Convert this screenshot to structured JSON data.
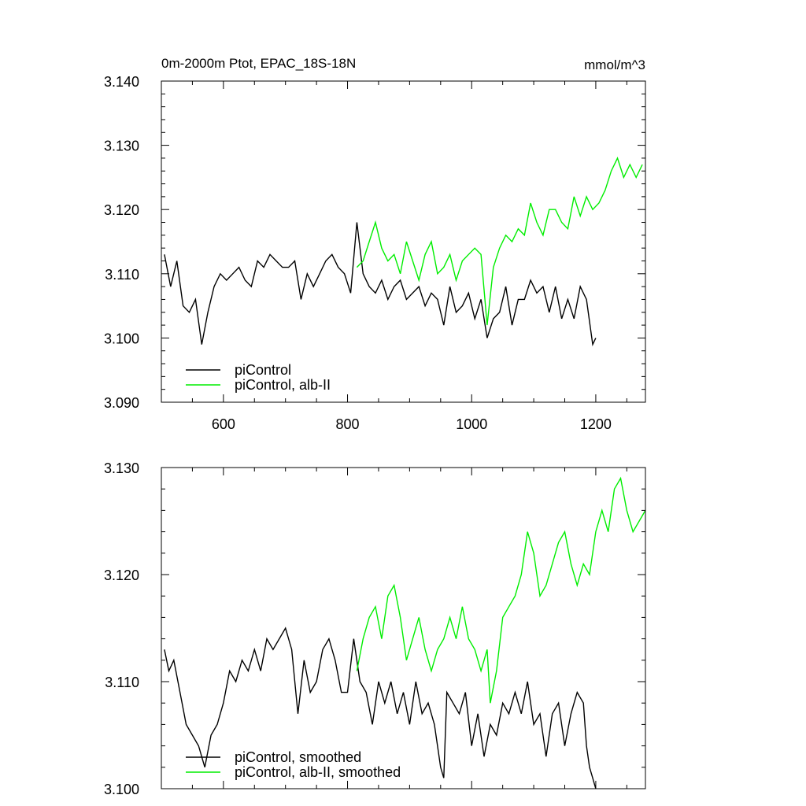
{
  "figure": {
    "title_left": "0m-2000m Ptot, EPAC_18S-18N",
    "title_right": "mmol/m^3"
  },
  "colors": {
    "piControl": "#000000",
    "albII": "#00ee00"
  },
  "chart_data": [
    {
      "type": "line",
      "panel": "top",
      "xlim": [
        500,
        1280
      ],
      "ylim": [
        3.09,
        3.14
      ],
      "x_ticks": [
        600,
        800,
        1000,
        1200
      ],
      "x_tick_labels": [
        "600",
        "800",
        "1000",
        "1200"
      ],
      "y_ticks": [
        3.09,
        3.1,
        3.11,
        3.12,
        3.13,
        3.14
      ],
      "y_tick_labels": [
        "3.090",
        "3.100",
        "3.110",
        "3.120",
        "3.130",
        "3.140"
      ],
      "legend_position": "bottom-left",
      "series": [
        {
          "name": "piControl",
          "color": "#000000",
          "x": [
            505,
            515,
            525,
            535,
            545,
            555,
            565,
            575,
            585,
            595,
            605,
            615,
            625,
            635,
            645,
            655,
            665,
            675,
            685,
            695,
            705,
            715,
            725,
            735,
            745,
            755,
            765,
            775,
            785,
            795,
            805,
            815,
            825,
            835,
            845,
            855,
            865,
            875,
            885,
            895,
            905,
            915,
            925,
            935,
            945,
            955,
            965,
            975,
            985,
            995,
            1005,
            1015,
            1025,
            1035,
            1045,
            1055,
            1065,
            1075,
            1085,
            1095,
            1105,
            1115,
            1125,
            1135,
            1145,
            1155,
            1165,
            1175,
            1185,
            1195,
            1200
          ],
          "values": [
            3.113,
            3.108,
            3.112,
            3.105,
            3.104,
            3.106,
            3.099,
            3.104,
            3.108,
            3.11,
            3.109,
            3.11,
            3.111,
            3.109,
            3.108,
            3.112,
            3.111,
            3.113,
            3.112,
            3.111,
            3.111,
            3.112,
            3.106,
            3.11,
            3.108,
            3.11,
            3.112,
            3.113,
            3.111,
            3.11,
            3.107,
            3.118,
            3.11,
            3.108,
            3.107,
            3.109,
            3.106,
            3.108,
            3.109,
            3.106,
            3.107,
            3.108,
            3.105,
            3.107,
            3.106,
            3.102,
            3.108,
            3.104,
            3.105,
            3.107,
            3.103,
            3.106,
            3.1,
            3.103,
            3.104,
            3.108,
            3.102,
            3.106,
            3.106,
            3.109,
            3.107,
            3.108,
            3.104,
            3.108,
            3.103,
            3.106,
            3.103,
            3.108,
            3.106,
            3.099,
            3.1
          ]
        },
        {
          "name": "piControl, alb-II",
          "color": "#00ee00",
          "x": [
            815,
            825,
            835,
            845,
            855,
            865,
            875,
            885,
            895,
            905,
            915,
            925,
            935,
            945,
            955,
            965,
            975,
            985,
            995,
            1005,
            1015,
            1025,
            1035,
            1045,
            1055,
            1065,
            1075,
            1085,
            1095,
            1105,
            1115,
            1125,
            1135,
            1145,
            1155,
            1165,
            1175,
            1185,
            1195,
            1205,
            1215,
            1225,
            1235,
            1245,
            1255,
            1265,
            1275
          ],
          "values": [
            3.111,
            3.112,
            3.115,
            3.118,
            3.114,
            3.112,
            3.113,
            3.11,
            3.115,
            3.112,
            3.109,
            3.113,
            3.115,
            3.11,
            3.111,
            3.113,
            3.109,
            3.112,
            3.113,
            3.114,
            3.113,
            3.102,
            3.111,
            3.114,
            3.116,
            3.115,
            3.117,
            3.116,
            3.121,
            3.118,
            3.116,
            3.12,
            3.12,
            3.118,
            3.117,
            3.122,
            3.119,
            3.122,
            3.12,
            3.121,
            3.123,
            3.126,
            3.128,
            3.125,
            3.127,
            3.125,
            3.127
          ]
        }
      ]
    },
    {
      "type": "line",
      "panel": "bottom",
      "xlim": [
        500,
        1280
      ],
      "ylim": [
        3.1,
        3.13
      ],
      "x_ticks": [
        600,
        800,
        1000,
        1200
      ],
      "y_ticks": [
        3.1,
        3.11,
        3.12,
        3.13
      ],
      "y_tick_labels": [
        "3.100",
        "3.110",
        "3.120",
        "3.130"
      ],
      "legend_position": "bottom-left",
      "series": [
        {
          "name": "piControl, smoothed",
          "color": "#000000",
          "x": [
            505,
            512,
            520,
            530,
            540,
            550,
            560,
            570,
            580,
            590,
            600,
            610,
            620,
            630,
            640,
            650,
            660,
            670,
            680,
            690,
            700,
            710,
            720,
            730,
            740,
            750,
            760,
            770,
            780,
            790,
            800,
            810,
            820,
            830,
            840,
            850,
            860,
            870,
            880,
            890,
            900,
            910,
            920,
            930,
            940,
            950,
            955,
            960,
            970,
            980,
            990,
            1000,
            1010,
            1020,
            1030,
            1040,
            1050,
            1060,
            1070,
            1080,
            1090,
            1100,
            1110,
            1120,
            1130,
            1140,
            1150,
            1160,
            1170,
            1180,
            1185,
            1190,
            1195,
            1200
          ],
          "values": [
            3.113,
            3.111,
            3.112,
            3.109,
            3.106,
            3.105,
            3.104,
            3.102,
            3.105,
            3.106,
            3.108,
            3.111,
            3.11,
            3.112,
            3.111,
            3.113,
            3.111,
            3.114,
            3.113,
            3.114,
            3.115,
            3.113,
            3.107,
            3.112,
            3.109,
            3.11,
            3.113,
            3.114,
            3.112,
            3.109,
            3.109,
            3.114,
            3.11,
            3.109,
            3.106,
            3.11,
            3.108,
            3.11,
            3.107,
            3.109,
            3.106,
            3.11,
            3.107,
            3.108,
            3.106,
            3.102,
            3.101,
            3.109,
            3.108,
            3.107,
            3.109,
            3.104,
            3.107,
            3.103,
            3.106,
            3.105,
            3.108,
            3.107,
            3.109,
            3.107,
            3.11,
            3.106,
            3.107,
            3.103,
            3.107,
            3.108,
            3.104,
            3.107,
            3.109,
            3.108,
            3.104,
            3.102,
            3.101,
            3.1
          ]
        },
        {
          "name": "piControl, alb-II, smoothed",
          "color": "#00ee00",
          "x": [
            815,
            825,
            835,
            845,
            855,
            865,
            875,
            885,
            895,
            905,
            915,
            925,
            935,
            945,
            955,
            965,
            975,
            985,
            995,
            1005,
            1015,
            1025,
            1030,
            1040,
            1050,
            1060,
            1070,
            1080,
            1090,
            1100,
            1110,
            1120,
            1130,
            1140,
            1150,
            1160,
            1170,
            1180,
            1190,
            1200,
            1210,
            1220,
            1230,
            1240,
            1250,
            1260,
            1270,
            1280
          ],
          "values": [
            3.111,
            3.114,
            3.116,
            3.117,
            3.114,
            3.118,
            3.119,
            3.116,
            3.112,
            3.114,
            3.116,
            3.113,
            3.111,
            3.113,
            3.114,
            3.116,
            3.114,
            3.117,
            3.114,
            3.113,
            3.111,
            3.113,
            3.108,
            3.111,
            3.116,
            3.117,
            3.118,
            3.12,
            3.124,
            3.122,
            3.118,
            3.119,
            3.121,
            3.123,
            3.124,
            3.121,
            3.119,
            3.121,
            3.12,
            3.124,
            3.126,
            3.124,
            3.128,
            3.129,
            3.126,
            3.124,
            3.125,
            3.126
          ]
        }
      ]
    }
  ]
}
